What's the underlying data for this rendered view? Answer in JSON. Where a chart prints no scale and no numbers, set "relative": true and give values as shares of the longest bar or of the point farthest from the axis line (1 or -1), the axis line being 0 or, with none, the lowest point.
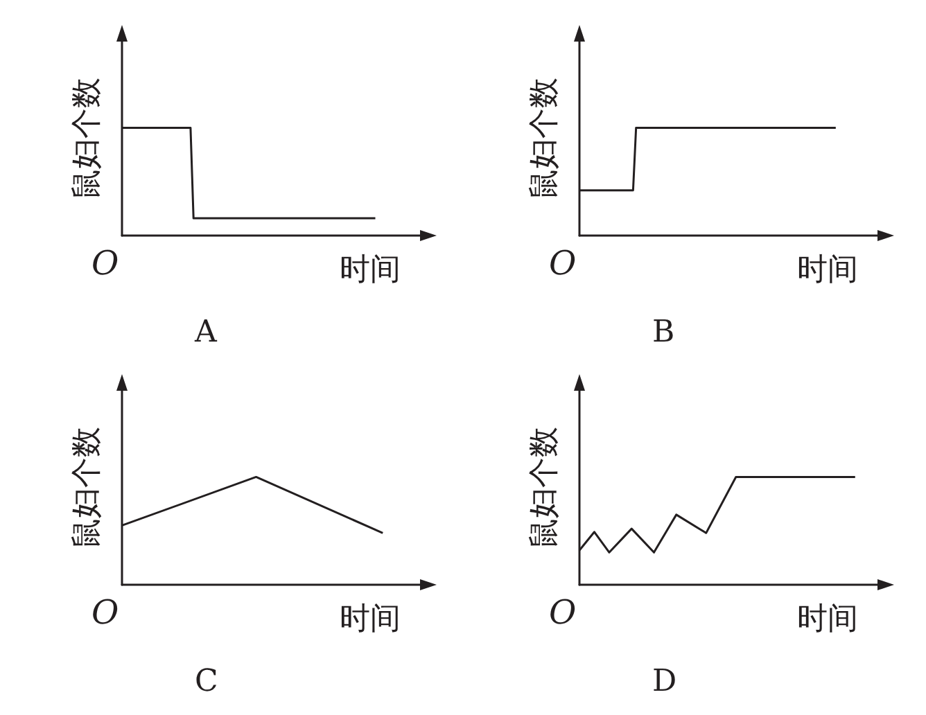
{
  "chart_data": [
    {
      "type": "line",
      "title": "A",
      "xlabel": "时间",
      "ylabel": "鼠妇个数",
      "annotations": [
        "O"
      ],
      "relative": true,
      "line_style": "solid",
      "categories": [
        null,
        null,
        null,
        null,
        null,
        null,
        null,
        null,
        null,
        null,
        null,
        null,
        null,
        null,
        null,
        null,
        null,
        null,
        null,
        null,
        null,
        null,
        null,
        null,
        null,
        null,
        null,
        null,
        null,
        null,
        null,
        null,
        null,
        null,
        null,
        null,
        null,
        null,
        null,
        null,
        null,
        null,
        null,
        null,
        null,
        null,
        null,
        null,
        null,
        null,
        null,
        null,
        null,
        null,
        null,
        null,
        null,
        null,
        null,
        null,
        null,
        null,
        null,
        null,
        null,
        null,
        null,
        null,
        null,
        null,
        null,
        null,
        null,
        null,
        null,
        null,
        null,
        null,
        null,
        null,
        null,
        null,
        null,
        null,
        null,
        null,
        null,
        null,
        null,
        null,
        null,
        null,
        null,
        null,
        null,
        null,
        null,
        null,
        null,
        null,
        null
      ],
      "series": [
        {
          "color": "#231f20",
          "values": [
            1,
            null,
            null,
            null,
            null,
            null,
            null,
            null,
            null,
            null,
            null,
            null,
            null,
            null,
            null,
            null,
            null,
            null,
            null,
            null,
            null,
            null,
            null,
            1,
            0.16,
            null,
            null,
            null,
            null,
            null,
            null,
            null,
            null,
            null,
            null,
            null,
            null,
            null,
            null,
            null,
            null,
            null,
            null,
            null,
            null,
            null,
            null,
            null,
            null,
            null,
            null,
            null,
            null,
            null,
            null,
            null,
            null,
            null,
            null,
            null,
            null,
            null,
            null,
            null,
            null,
            null,
            null,
            null,
            null,
            null,
            null,
            null,
            null,
            null,
            null,
            null,
            null,
            null,
            null,
            null,
            null,
            null,
            null,
            null,
            null,
            0.16,
            null,
            null,
            null,
            null,
            null,
            null,
            null,
            null,
            null,
            null,
            null,
            null,
            null,
            null,
            null
          ]
        }
      ]
    },
    {
      "type": "line",
      "title": "B",
      "xlabel": "时间",
      "ylabel": "鼠妇个数",
      "annotations": [
        "O"
      ],
      "relative": true,
      "line_style": "solid",
      "categories": [
        null,
        null,
        null,
        null,
        null,
        null,
        null,
        null,
        null,
        null,
        null,
        null,
        null,
        null,
        null,
        null,
        null,
        null,
        null,
        null,
        null,
        null,
        null,
        null,
        null,
        null,
        null,
        null,
        null,
        null,
        null,
        null,
        null,
        null,
        null,
        null,
        null,
        null,
        null,
        null,
        null,
        null,
        null,
        null,
        null,
        null,
        null,
        null,
        null,
        null,
        null,
        null,
        null,
        null,
        null,
        null,
        null,
        null,
        null,
        null,
        null,
        null,
        null,
        null,
        null,
        null,
        null,
        null,
        null,
        null,
        null,
        null,
        null,
        null,
        null,
        null,
        null,
        null,
        null,
        null,
        null,
        null,
        null,
        null,
        null,
        null,
        null,
        null,
        null,
        null,
        null,
        null,
        null,
        null,
        null,
        null,
        null,
        null,
        null,
        null,
        null
      ],
      "series": [
        {
          "color": "#231f20",
          "values": [
            0.42,
            null,
            null,
            null,
            null,
            null,
            null,
            null,
            null,
            null,
            null,
            null,
            null,
            null,
            null,
            null,
            null,
            null,
            0.42,
            1,
            null,
            null,
            null,
            null,
            null,
            null,
            null,
            null,
            null,
            null,
            null,
            null,
            null,
            null,
            null,
            null,
            null,
            null,
            null,
            null,
            null,
            null,
            null,
            null,
            null,
            null,
            null,
            null,
            null,
            null,
            null,
            null,
            null,
            null,
            null,
            null,
            null,
            null,
            null,
            null,
            null,
            null,
            null,
            null,
            null,
            null,
            null,
            null,
            null,
            null,
            null,
            null,
            null,
            null,
            null,
            null,
            null,
            null,
            null,
            null,
            null,
            null,
            null,
            null,
            null,
            null,
            1,
            null,
            null,
            null,
            null,
            null,
            null,
            null,
            null,
            null,
            null,
            null,
            null,
            null,
            null
          ]
        }
      ]
    },
    {
      "type": "line",
      "title": "C",
      "xlabel": "时间",
      "ylabel": "鼠妇个数",
      "annotations": [
        "O"
      ],
      "relative": true,
      "line_style": "solid",
      "categories": [
        null,
        null,
        null,
        null,
        null,
        null,
        null,
        null,
        null,
        null,
        null,
        null,
        null,
        null,
        null,
        null,
        null,
        null,
        null,
        null,
        null,
        null,
        null,
        null,
        null,
        null,
        null,
        null,
        null,
        null,
        null,
        null,
        null,
        null,
        null,
        null,
        null,
        null,
        null,
        null,
        null
      ],
      "series": [
        {
          "color": "#231f20",
          "values": [
            0.55,
            null,
            null,
            null,
            null,
            null,
            null,
            null,
            null,
            null,
            null,
            null,
            null,
            null,
            null,
            null,
            null,
            null,
            1,
            null,
            null,
            null,
            null,
            null,
            null,
            null,
            null,
            null,
            null,
            null,
            null,
            null,
            null,
            null,
            null,
            0.48,
            null,
            null,
            null,
            null,
            null
          ]
        }
      ]
    },
    {
      "type": "line",
      "title": "D",
      "xlabel": "时间",
      "ylabel": "鼠妇个数",
      "annotations": [
        "O"
      ],
      "relative": true,
      "line_style": "solid",
      "categories": [
        null,
        null,
        null,
        null,
        null,
        null,
        null,
        null,
        null,
        null,
        null,
        null,
        null,
        null,
        null,
        null,
        null,
        null,
        null,
        null,
        null,
        null,
        null,
        null,
        null,
        null,
        null,
        null,
        null,
        null,
        null,
        null,
        null,
        null,
        null,
        null,
        null,
        null,
        null,
        null,
        null
      ],
      "series": [
        {
          "color": "#231f20",
          "values": [
            0.32,
            null,
            0.49,
            null,
            0.3,
            null,
            null,
            0.52,
            null,
            null,
            0.3,
            null,
            null,
            0.65,
            null,
            null,
            null,
            0.48,
            null,
            null,
            null,
            1,
            null,
            null,
            null,
            null,
            null,
            null,
            null,
            null,
            null,
            null,
            null,
            null,
            null,
            null,
            null,
            1,
            null,
            null,
            null
          ]
        }
      ]
    }
  ]
}
